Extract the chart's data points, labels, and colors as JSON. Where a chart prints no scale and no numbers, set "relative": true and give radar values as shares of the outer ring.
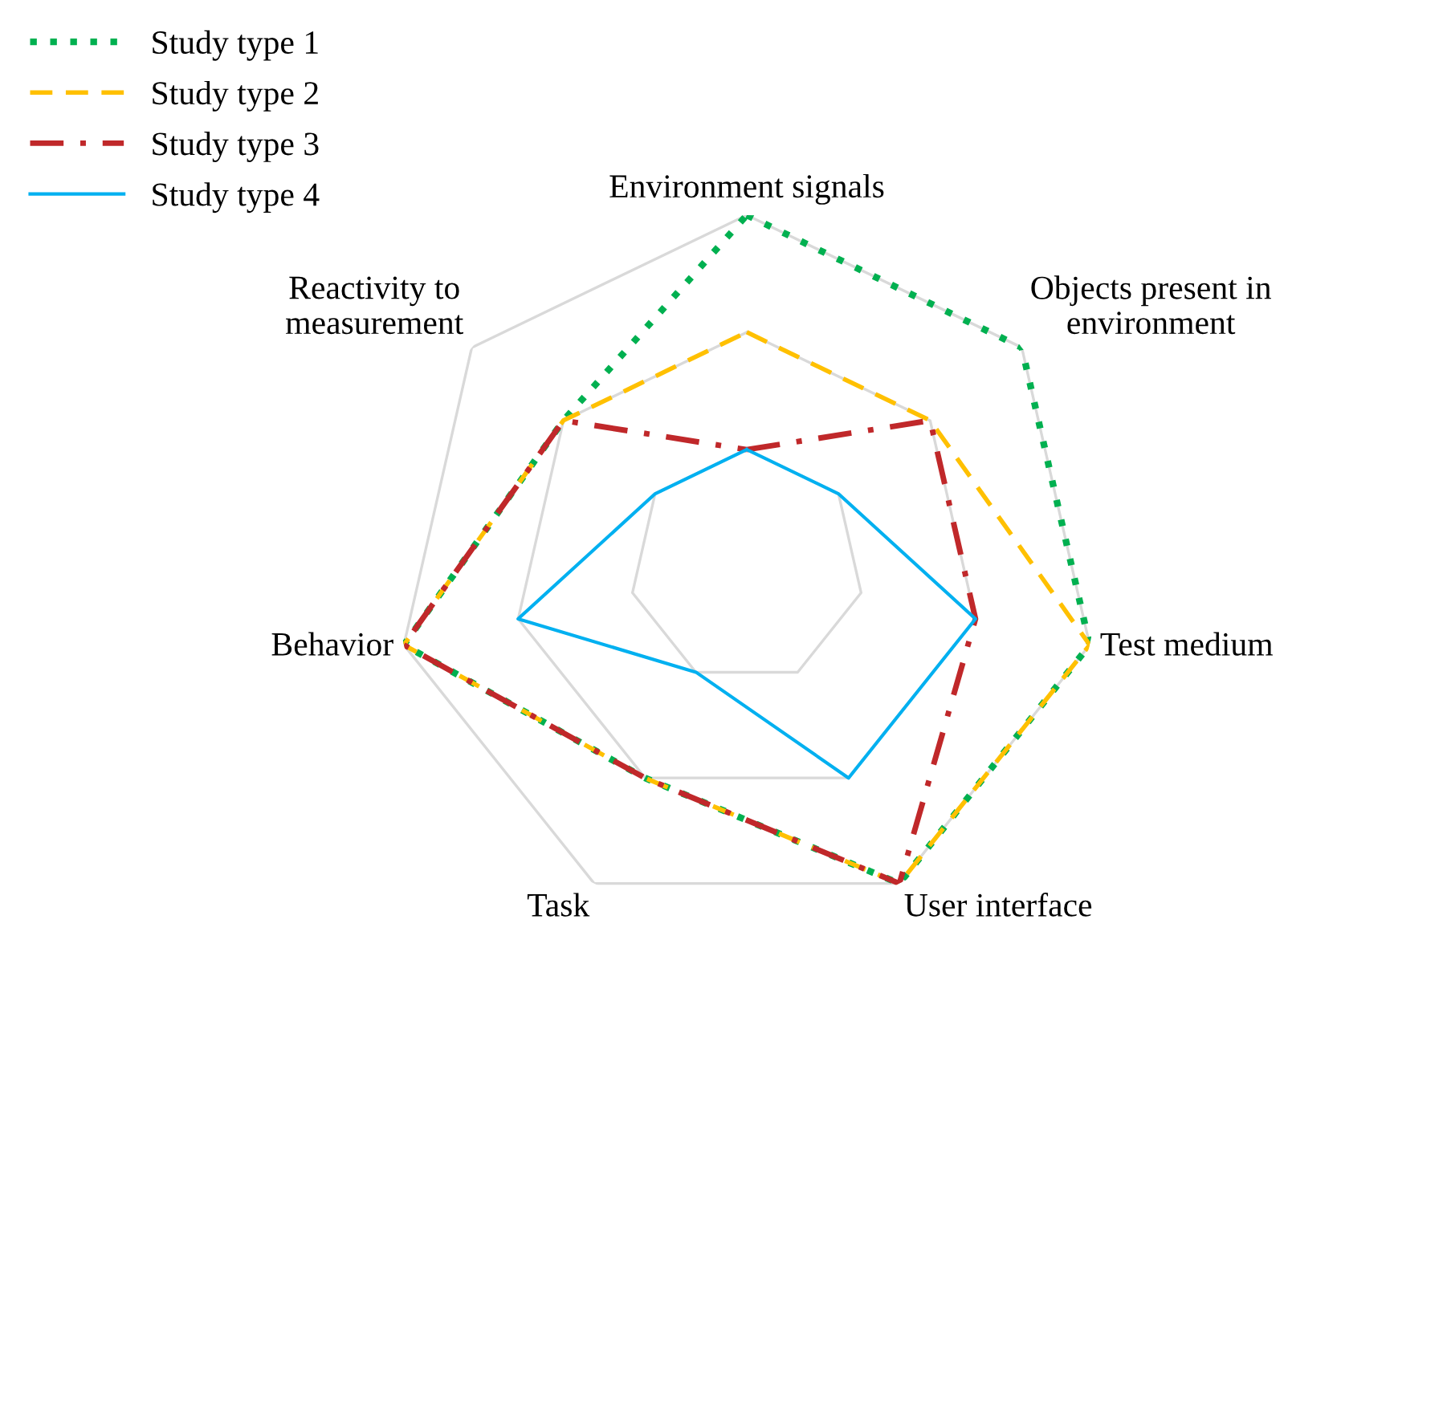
{
  "chart_data": {
    "type": "radar",
    "relative": true,
    "grid": true,
    "legend": "top left",
    "categories": [
      "Environment signals",
      "Objects present in\nenvironment",
      "Test medium",
      "User interface",
      "Task",
      "Behavior",
      "Reactivity to\nmeasurement"
    ],
    "series": [
      {
        "name": "Study type 1",
        "color": "#00b050",
        "line_style": "dotted",
        "values": [
          1,
          1,
          1,
          1,
          0.667,
          1,
          0.667
        ]
      },
      {
        "name": "Study type 2",
        "color": "#ffc000",
        "line_style": "dashed",
        "values": [
          0.667,
          0.667,
          1,
          1,
          0.667,
          1,
          0.667
        ]
      },
      {
        "name": "Study type 3",
        "color": "#c0282a",
        "line_style": "dashdot",
        "values": [
          0.333,
          0.667,
          0.667,
          1,
          0.667,
          1,
          0.667
        ]
      },
      {
        "name": "Study type 4",
        "color": "#00b0f0",
        "line_style": "solid",
        "values": [
          0.333,
          0.333,
          0.667,
          0.667,
          0.333,
          0.667,
          0.333
        ]
      }
    ]
  }
}
